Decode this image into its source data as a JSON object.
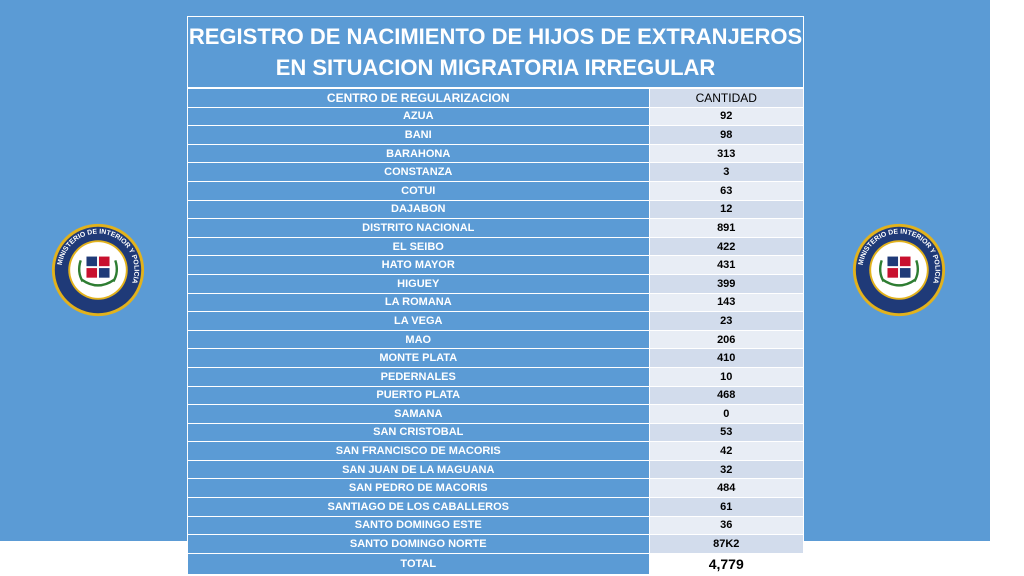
{
  "title": {
    "line1": "REGISTRO DE NACIMIENTO DE HIJOS DE EXTRANJEROS",
    "line2": "EN SITUACION MIGRATORIA IRREGULAR"
  },
  "table": {
    "header": {
      "name": "CENTRO DE REGULARIZACION",
      "value": "CANTIDAD"
    },
    "rows": [
      {
        "name": "AZUA",
        "value": "92"
      },
      {
        "name": "BANI",
        "value": "98"
      },
      {
        "name": "BARAHONA",
        "value": "313"
      },
      {
        "name": "CONSTANZA",
        "value": "3"
      },
      {
        "name": "COTUI",
        "value": "63"
      },
      {
        "name": "DAJABON",
        "value": "12"
      },
      {
        "name": "DISTRITO NACIONAL",
        "value": "891"
      },
      {
        "name": "EL SEIBO",
        "value": "422"
      },
      {
        "name": "HATO MAYOR",
        "value": "431"
      },
      {
        "name": "HIGUEY",
        "value": "399"
      },
      {
        "name": "LA ROMANA",
        "value": "143"
      },
      {
        "name": "LA VEGA",
        "value": "23"
      },
      {
        "name": "MAO",
        "value": "206"
      },
      {
        "name": "MONTE PLATA",
        "value": "410"
      },
      {
        "name": "PEDERNALES",
        "value": "10"
      },
      {
        "name": "PUERTO PLATA",
        "value": "468"
      },
      {
        "name": "SAMANA",
        "value": "0"
      },
      {
        "name": "SAN CRISTOBAL",
        "value": "53"
      },
      {
        "name": "SAN FRANCISCO DE MACORIS",
        "value": "42"
      },
      {
        "name": "SAN JUAN DE LA MAGUANA",
        "value": "32"
      },
      {
        "name": "SAN PEDRO DE MACORIS",
        "value": "484"
      },
      {
        "name": "SANTIAGO DE LOS CABALLEROS",
        "value": "61"
      },
      {
        "name": "SANTO DOMINGO ESTE",
        "value": "36"
      },
      {
        "name": "SANTO DOMINGO NORTE",
        "value": "87K2"
      }
    ],
    "total": {
      "name": "TOTAL",
      "value": "4,779"
    }
  },
  "seal": {
    "text": "MINISTERIO DE INTERIOR Y POLICIA",
    "colors": {
      "ring": "#1f3a78",
      "gold": "#e2b21c",
      "red": "#c8102e",
      "blue": "#1f3a78"
    }
  }
}
